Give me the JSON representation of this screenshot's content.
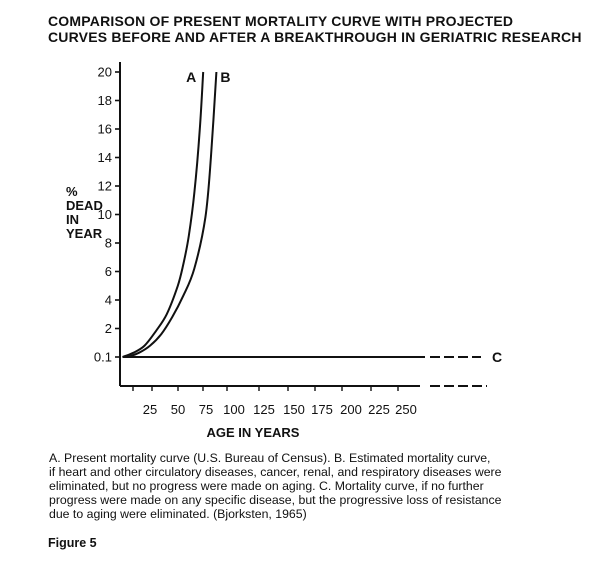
{
  "chart_data": {
    "type": "line",
    "title_lines": [
      "COMPARISON OF PRESENT MORTALITY CURVE WITH PROJECTED",
      "CURVES BEFORE AND AFTER A BREAKTHROUGH IN GERIATRIC RESEARCH"
    ],
    "ylabel_lines": [
      "%",
      "DEAD",
      "IN",
      "YEAR"
    ],
    "xlabel": "AGE IN YEARS",
    "x_ticks": [
      25,
      50,
      75,
      100,
      125,
      150,
      175,
      200,
      225,
      250
    ],
    "y_ticks": [
      "0.1",
      "2",
      "4",
      "6",
      "8",
      "10",
      "12",
      "14",
      "16",
      "18",
      "20"
    ],
    "xlim": [
      0,
      340
    ],
    "ylim": [
      0,
      20
    ],
    "series": [
      {
        "name": "A",
        "x": [
          10,
          20,
          30,
          40,
          50,
          60,
          65,
          70,
          75,
          80,
          83
        ],
        "y": [
          0.1,
          0.3,
          0.8,
          1.8,
          3.0,
          5.0,
          6.5,
          8.5,
          11.5,
          16.0,
          20.0
        ]
      },
      {
        "name": "B",
        "x": [
          15,
          25,
          35,
          45,
          55,
          65,
          75,
          85,
          90,
          95
        ],
        "y": [
          0.1,
          0.3,
          0.8,
          1.6,
          2.8,
          4.3,
          6.2,
          9.8,
          14.0,
          20.0
        ]
      },
      {
        "name": "C",
        "x": [
          10,
          280,
          340
        ],
        "y": [
          0.1,
          0.1,
          0.1
        ],
        "dashed_from_x": 280
      }
    ],
    "grid": false,
    "legend": "labels at curve ends"
  },
  "caption_lines": [
    "A. Present mortality curve (U.S. Bureau of Census). B. Estimated mortality curve,",
    "if heart and other circulatory diseases, cancer, renal, and respiratory diseases were",
    "eliminated, but no progress were made on aging. C. Mortality curve, if no further",
    "progress were made on any specific disease, but the progressive loss of resistance",
    "due to aging were eliminated. (Bjorksten, 1965)"
  ],
  "figure_label": "Figure 5"
}
